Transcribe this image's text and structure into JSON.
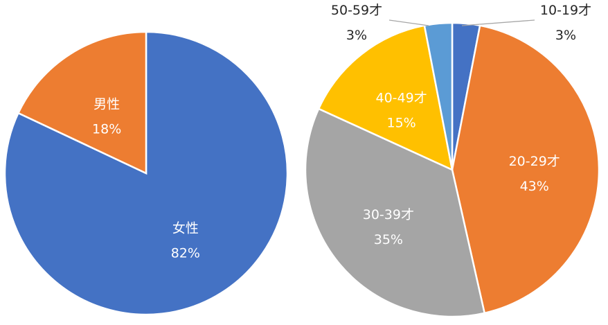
{
  "chart_data": [
    {
      "type": "pie",
      "title": "",
      "categories": [
        "女性",
        "男性"
      ],
      "values": [
        82,
        18
      ],
      "value_labels": [
        "82%",
        "18%"
      ],
      "colors": [
        "#4472C4",
        "#ED7D31"
      ],
      "legend": "none",
      "label_positions": [
        "inside",
        "inside"
      ]
    },
    {
      "type": "pie",
      "title": "",
      "categories": [
        "10-19才",
        "20-29才",
        "30-39才",
        "40-49才",
        "50-59才"
      ],
      "values": [
        3,
        43,
        35,
        15,
        3
      ],
      "value_labels": [
        "3%",
        "43%",
        "35%",
        "15%",
        "3%"
      ],
      "colors": [
        "#4472C4",
        "#ED7D31",
        "#A5A5A5",
        "#FFC000",
        "#5B9BD5"
      ],
      "legend": "none",
      "label_positions": [
        "outside",
        "inside",
        "inside",
        "inside",
        "outside"
      ]
    }
  ]
}
